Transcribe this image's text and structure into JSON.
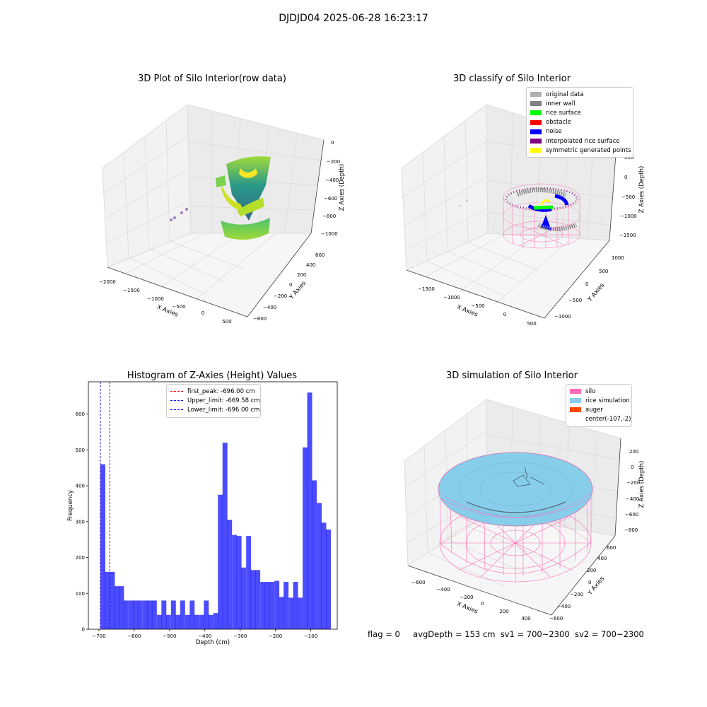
{
  "figure": {
    "suptitle": "DJDJD04 2025-06-28 16:23:17"
  },
  "panel_raw": {
    "title": "3D Plot of Silo Interior(row data)",
    "xlabel": "X Axies",
    "ylabel": "Y Axies",
    "zlabel": "Z Axies (Depth)",
    "x_ticks": [
      "−2000",
      "−1500",
      "−1000",
      "−500",
      "0",
      "500"
    ],
    "y_ticks": [
      "−600",
      "−400",
      "−200",
      "0",
      "200",
      "400",
      "600"
    ],
    "z_ticks": [
      "0",
      "−200",
      "−400",
      "−600",
      "−800",
      "−1000"
    ]
  },
  "panel_classify": {
    "title": "3D classify of Silo Interior",
    "xlabel": "X Axies",
    "ylabel": "Y Axies",
    "zlabel": "Z Axies (Depth)",
    "x_ticks": [
      "−1500",
      "−1000",
      "−500",
      "0",
      "500"
    ],
    "y_ticks": [
      "−1000",
      "−500",
      "0",
      "500",
      "1000"
    ],
    "z_ticks": [
      "500",
      "0",
      "−500",
      "−1000",
      "−1500"
    ],
    "legend": [
      {
        "label": "original data",
        "color": "#b0b0b0"
      },
      {
        "label": "inner wall",
        "color": "#808080"
      },
      {
        "label": "rice surface",
        "color": "#00ff00"
      },
      {
        "label": "obstacle",
        "color": "#ff0000"
      },
      {
        "label": "noise",
        "color": "#0000ff"
      },
      {
        "label": "interpolated rice surface",
        "color": "#800080"
      },
      {
        "label": "symmetric generated points",
        "color": "#ffff00"
      }
    ]
  },
  "panel_sim": {
    "title": "3D simulation of Silo Interior",
    "xlabel": "X Axies",
    "ylabel": "Y Axies",
    "zlabel": "Z Axies (Depth)",
    "x_ticks": [
      "−600",
      "−400",
      "−200",
      "0",
      "200",
      "400"
    ],
    "y_ticks": [
      "−600",
      "−400",
      "−200",
      "0",
      "200",
      "400",
      "600"
    ],
    "z_ticks": [
      "200",
      "0",
      "−200",
      "−400",
      "−600",
      "−800"
    ],
    "legend": [
      {
        "label": "silo",
        "color": "#ff69b4"
      },
      {
        "label": "rice simulation",
        "color": "#87ceeb"
      },
      {
        "label": "auger",
        "color": "#ff4500"
      },
      {
        "label": "center(-107,-2)",
        "color": ""
      }
    ]
  },
  "status": {
    "flag": "flag = 0",
    "avg": "avgDepth = 153 cm",
    "sv1": "sv1 = 700~2300",
    "sv2": "sv2 = 700~2300"
  },
  "chart_data": {
    "type": "bar",
    "title": "Histogram of Z-Axies (Height) Values",
    "xlabel": "Depth (cm)",
    "ylabel": "Frequency",
    "xlim": [
      -730,
      -25
    ],
    "ylim": [
      0,
      690
    ],
    "x_ticks": [
      -700,
      -600,
      -500,
      -400,
      -300,
      -200,
      -100
    ],
    "y_ticks": [
      0,
      100,
      200,
      300,
      400,
      500,
      600
    ],
    "bar_width": 13.3,
    "bar_color": "#0000ff",
    "bins_start": [
      -696,
      -683,
      -669,
      -656,
      -643,
      -630,
      -616,
      -603,
      -590,
      -576,
      -563,
      -550,
      -536,
      -523,
      -510,
      -496,
      -483,
      -470,
      -456,
      -443,
      -430,
      -416,
      -403,
      -390,
      -376,
      -363,
      -350,
      -337,
      -323,
      -310,
      -297,
      -283,
      -270,
      -257,
      -243,
      -230,
      -217,
      -203,
      -190,
      -177,
      -163,
      -150,
      -137,
      -123,
      -110,
      -97,
      -83,
      -70,
      -57
    ],
    "values": [
      460,
      160,
      160,
      120,
      120,
      80,
      80,
      80,
      80,
      80,
      80,
      80,
      40,
      80,
      40,
      80,
      40,
      80,
      40,
      80,
      40,
      40,
      80,
      40,
      45,
      375,
      520,
      305,
      263,
      260,
      172,
      260,
      165,
      165,
      132,
      132,
      132,
      135,
      90,
      132,
      88,
      132,
      88,
      507,
      660,
      415,
      352,
      297,
      278
    ],
    "lines": [
      {
        "label": "first_peak: -696.00 cm",
        "x": -696,
        "color": "#ff0000"
      },
      {
        "label": "Upper_limit: -669.58 cm",
        "x": -669.58,
        "color": "#0000ff"
      },
      {
        "label": "Lower_limit: -696.00 cm",
        "x": -696,
        "color": "#0000ff"
      }
    ]
  }
}
